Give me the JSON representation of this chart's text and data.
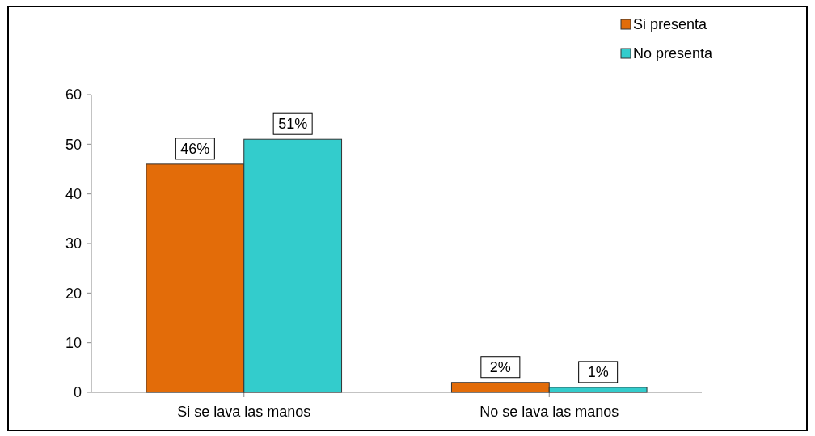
{
  "chart_data": {
    "type": "bar",
    "categories": [
      "Si se lava las manos",
      "No se lava las manos"
    ],
    "series": [
      {
        "name": "Si presenta",
        "color": "#e36c09",
        "values": [
          46,
          2
        ],
        "value_labels": [
          "46%",
          "2%"
        ]
      },
      {
        "name": "No presenta",
        "color": "#33cccc",
        "values": [
          51,
          1
        ],
        "value_labels": [
          "51%",
          "1%"
        ]
      }
    ],
    "ylim": [
      0,
      60
    ],
    "yticks": [
      0,
      10,
      20,
      30,
      40,
      50,
      60
    ],
    "grid": false,
    "legend": "top right"
  }
}
